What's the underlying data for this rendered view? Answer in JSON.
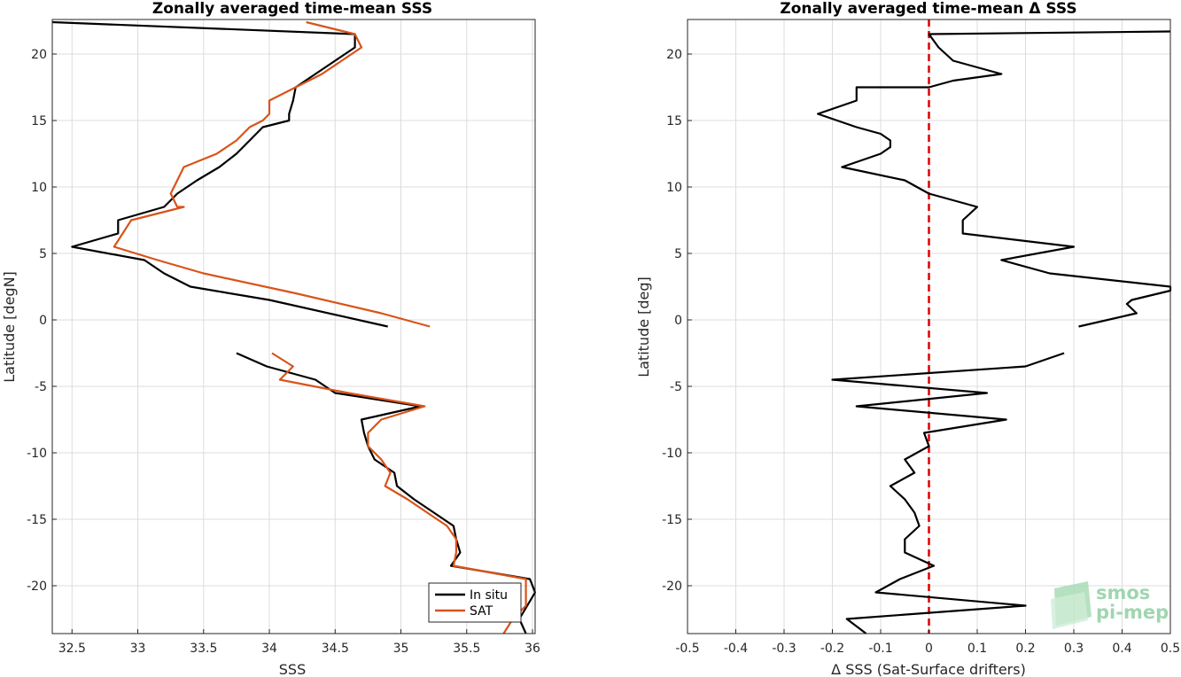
{
  "chart_data": [
    {
      "type": "line",
      "title": "Zonally averaged time-mean SSS",
      "xlabel": "SSS",
      "ylabel": "Latitude [degN]",
      "xlim": [
        32.35,
        36.02
      ],
      "ylim": [
        -23.6,
        22.6
      ],
      "xticks": [
        32.5,
        33,
        33.5,
        34,
        34.5,
        35,
        35.5,
        36
      ],
      "xtick_labels": [
        "32.5",
        "33",
        "33.5",
        "34",
        "34.5",
        "35",
        "35.5",
        "36"
      ],
      "yticks": [
        -20,
        -15,
        -10,
        -5,
        0,
        5,
        10,
        15,
        20
      ],
      "ytick_labels": [
        "-20",
        "-15",
        "-10",
        "-5",
        "0",
        "5",
        "10",
        "15",
        "20"
      ],
      "grid": true,
      "legend_position": "bottom-right",
      "series": [
        {
          "name": "In situ",
          "color": "#000000",
          "segments": [
            [
              [
                32.35,
                22.4
              ],
              [
                34.65,
                21.5
              ],
              [
                34.65,
                20.5
              ],
              [
                34.5,
                19.5
              ],
              [
                34.35,
                18.5
              ],
              [
                34.2,
                17.5
              ],
              [
                34.18,
                16.5
              ],
              [
                34.15,
                15.5
              ],
              [
                34.15,
                15.0
              ],
              [
                33.95,
                14.5
              ],
              [
                33.85,
                13.5
              ],
              [
                33.75,
                12.5
              ],
              [
                33.62,
                11.5
              ],
              [
                33.45,
                10.5
              ],
              [
                33.3,
                9.5
              ],
              [
                33.25,
                9.0
              ],
              [
                33.2,
                8.5
              ],
              [
                32.85,
                7.5
              ],
              [
                32.85,
                6.5
              ],
              [
                32.5,
                5.5
              ],
              [
                33.05,
                4.5
              ],
              [
                33.2,
                3.5
              ],
              [
                33.4,
                2.5
              ],
              [
                34.0,
                1.5
              ],
              [
                34.9,
                -0.5
              ]
            ],
            [
              [
                33.75,
                -2.5
              ],
              [
                33.98,
                -3.5
              ],
              [
                34.35,
                -4.5
              ],
              [
                34.5,
                -5.5
              ],
              [
                35.15,
                -6.5
              ],
              [
                34.7,
                -7.5
              ],
              [
                34.72,
                -8.5
              ],
              [
                34.75,
                -9.5
              ],
              [
                34.8,
                -10.5
              ],
              [
                34.95,
                -11.5
              ],
              [
                34.97,
                -12.5
              ],
              [
                35.1,
                -13.5
              ],
              [
                35.25,
                -14.5
              ],
              [
                35.4,
                -15.5
              ],
              [
                35.42,
                -16.5
              ],
              [
                35.45,
                -17.5
              ],
              [
                35.38,
                -18.5
              ],
              [
                35.98,
                -19.5
              ],
              [
                36.02,
                -20.5
              ],
              [
                35.9,
                -22.5
              ],
              [
                35.95,
                -23.6
              ]
            ]
          ]
        },
        {
          "name": "SAT",
          "color": "#d95319",
          "segments": [
            [
              [
                34.28,
                22.4
              ],
              [
                34.65,
                21.5
              ],
              [
                34.7,
                20.5
              ],
              [
                34.55,
                19.5
              ],
              [
                34.4,
                18.5
              ],
              [
                34.2,
                17.5
              ],
              [
                34.0,
                16.5
              ],
              [
                34.0,
                15.5
              ],
              [
                33.95,
                15.0
              ],
              [
                33.85,
                14.5
              ],
              [
                33.75,
                13.5
              ],
              [
                33.6,
                12.5
              ],
              [
                33.35,
                11.5
              ],
              [
                33.3,
                10.5
              ],
              [
                33.25,
                9.5
              ],
              [
                33.3,
                8.5
              ],
              [
                33.35,
                8.5
              ],
              [
                32.95,
                7.5
              ],
              [
                32.82,
                5.5
              ],
              [
                33.15,
                4.5
              ],
              [
                33.5,
                3.5
              ],
              [
                34.2,
                2.0
              ],
              [
                34.85,
                0.5
              ],
              [
                35.22,
                -0.5
              ]
            ],
            [
              [
                34.02,
                -2.5
              ],
              [
                34.18,
                -3.5
              ],
              [
                34.08,
                -4.5
              ],
              [
                34.6,
                -5.5
              ],
              [
                35.18,
                -6.5
              ],
              [
                34.85,
                -7.5
              ],
              [
                34.75,
                -8.5
              ],
              [
                34.75,
                -9.5
              ],
              [
                34.85,
                -10.5
              ],
              [
                34.92,
                -11.5
              ],
              [
                34.88,
                -12.5
              ],
              [
                35.05,
                -13.5
              ],
              [
                35.2,
                -14.5
              ],
              [
                35.35,
                -15.5
              ],
              [
                35.42,
                -16.5
              ],
              [
                35.42,
                -17.5
              ],
              [
                35.4,
                -18.5
              ],
              [
                35.95,
                -19.5
              ],
              [
                35.95,
                -21.5
              ],
              [
                35.95,
                -20.5
              ],
              [
                35.95,
                -21.5
              ],
              [
                35.85,
                -22.5
              ],
              [
                35.78,
                -23.6
              ]
            ]
          ]
        }
      ]
    },
    {
      "type": "line",
      "title": "Zonally averaged time-mean Δ SSS",
      "xlabel": "Δ SSS (Sat-Surface drifters)",
      "ylabel": "Latitude [deg]",
      "xlim": [
        -0.5,
        0.5
      ],
      "ylim": [
        -23.6,
        22.6
      ],
      "xticks": [
        -0.5,
        -0.4,
        -0.3,
        -0.2,
        -0.1,
        0,
        0.1,
        0.2,
        0.3,
        0.4,
        0.5
      ],
      "xtick_labels": [
        "-0.5",
        "-0.4",
        "-0.3",
        "-0.2",
        "-0.1",
        "0",
        "0.1",
        "0.2",
        "0.3",
        "0.4",
        "0.5"
      ],
      "yticks": [
        -20,
        -15,
        -10,
        -5,
        0,
        5,
        10,
        15,
        20
      ],
      "ytick_labels": [
        "-20",
        "-15",
        "-10",
        "-5",
        "0",
        "5",
        "10",
        "15",
        "20"
      ],
      "grid": true,
      "reference_line": {
        "x": 0,
        "color": "#e00000",
        "style": "dashed"
      },
      "series": [
        {
          "color": "#000000",
          "segments": [
            [
              [
                0.5,
                21.7
              ],
              [
                0.0,
                21.5
              ],
              [
                0.02,
                20.5
              ],
              [
                0.05,
                19.5
              ],
              [
                0.15,
                18.5
              ],
              [
                0.05,
                18.0
              ],
              [
                0.0,
                17.5
              ],
              [
                -0.15,
                17.5
              ],
              [
                -0.15,
                16.5
              ],
              [
                -0.23,
                15.5
              ],
              [
                -0.15,
                14.5
              ],
              [
                -0.1,
                14.0
              ],
              [
                -0.08,
                13.5
              ],
              [
                -0.08,
                13.0
              ],
              [
                -0.1,
                12.5
              ],
              [
                -0.18,
                11.5
              ],
              [
                -0.05,
                10.5
              ],
              [
                0.0,
                9.5
              ],
              [
                0.05,
                9.0
              ],
              [
                0.1,
                8.5
              ],
              [
                0.07,
                7.5
              ],
              [
                0.07,
                6.5
              ],
              [
                0.3,
                5.5
              ],
              [
                0.15,
                4.5
              ],
              [
                0.25,
                3.5
              ],
              [
                0.5,
                2.5
              ],
              [
                0.5,
                2.2
              ],
              [
                0.42,
                1.5
              ],
              [
                0.41,
                1.2
              ],
              [
                0.43,
                0.5
              ],
              [
                0.31,
                -0.5
              ]
            ],
            [
              [
                0.28,
                -2.5
              ],
              [
                0.2,
                -3.5
              ],
              [
                -0.2,
                -4.5
              ],
              [
                0.12,
                -5.5
              ],
              [
                -0.15,
                -6.5
              ],
              [
                0.16,
                -7.5
              ],
              [
                -0.01,
                -8.5
              ],
              [
                0.0,
                -9.5
              ],
              [
                -0.05,
                -10.5
              ],
              [
                -0.03,
                -11.5
              ],
              [
                -0.08,
                -12.5
              ],
              [
                -0.05,
                -13.5
              ],
              [
                -0.03,
                -14.5
              ],
              [
                -0.02,
                -15.5
              ],
              [
                -0.05,
                -16.5
              ],
              [
                -0.05,
                -17.5
              ],
              [
                0.01,
                -18.5
              ],
              [
                -0.06,
                -19.5
              ],
              [
                -0.11,
                -20.5
              ],
              [
                0.2,
                -21.5
              ],
              [
                -0.17,
                -22.5
              ],
              [
                -0.13,
                -23.6
              ]
            ]
          ]
        }
      ]
    }
  ],
  "legend": {
    "entries": [
      "In situ",
      "SAT"
    ]
  },
  "logo": {
    "line1": "smos",
    "line2": "pi-mep"
  }
}
